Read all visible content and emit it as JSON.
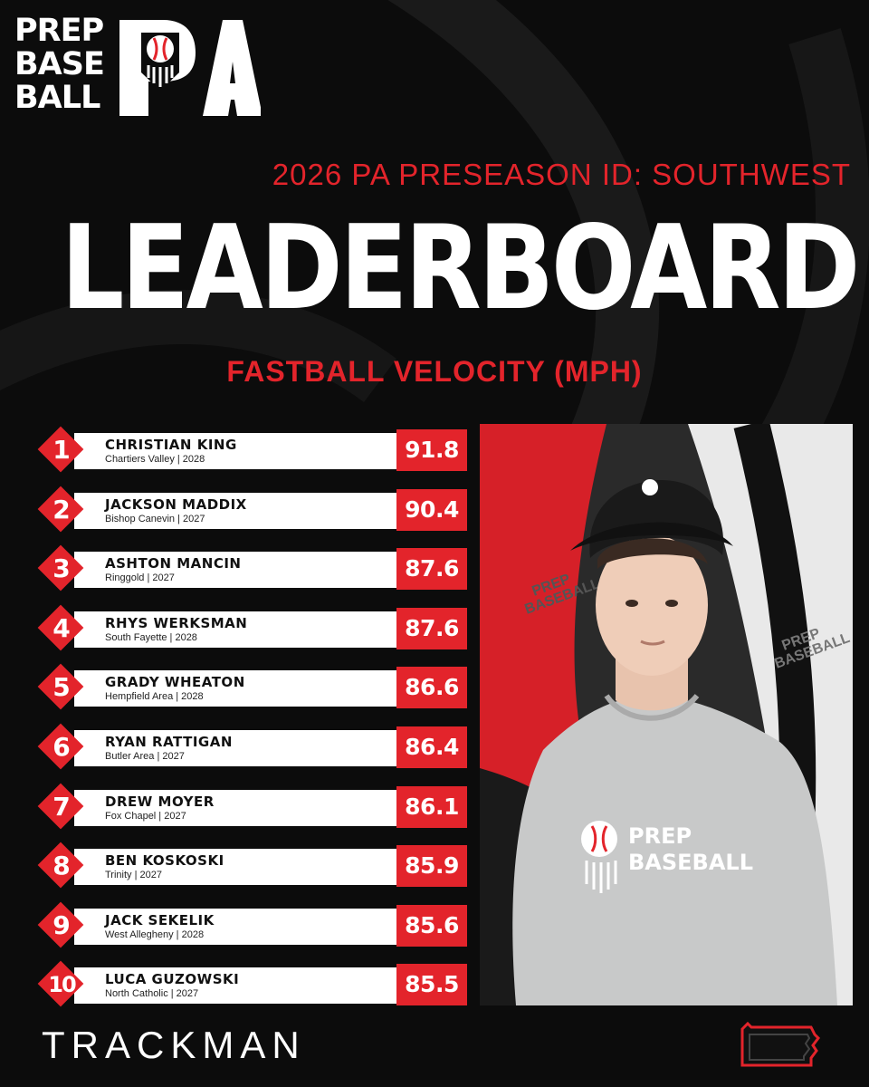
{
  "logo": {
    "line1": "PREP",
    "line2": "BASE",
    "line3": "BALL",
    "mark": "PA"
  },
  "event_title": "2026 PA PRESEASON ID: SOUTHWEST",
  "main_title": "LEADERBOARD",
  "metric_title": "FASTBALL VELOCITY (MPH)",
  "leaderboard": [
    {
      "rank": "1",
      "name": "CHRISTIAN KING",
      "info": "Chartiers Valley | 2028",
      "value": "91.8"
    },
    {
      "rank": "2",
      "name": "JACKSON MADDIX",
      "info": "Bishop Canevin | 2027",
      "value": "90.4"
    },
    {
      "rank": "3",
      "name": "ASHTON MANCIN",
      "info": "Ringgold | 2027",
      "value": "87.6"
    },
    {
      "rank": "4",
      "name": "RHYS WERKSMAN",
      "info": "South Fayette | 2028",
      "value": "87.6"
    },
    {
      "rank": "5",
      "name": "GRADY WHEATON",
      "info": "Hempfield Area | 2028",
      "value": "86.6"
    },
    {
      "rank": "6",
      "name": "RYAN RATTIGAN",
      "info": "Butler Area | 2027",
      "value": "86.4"
    },
    {
      "rank": "7",
      "name": "DREW MOYER",
      "info": "Fox Chapel | 2027",
      "value": "86.1"
    },
    {
      "rank": "8",
      "name": "BEN KOSKOSKI",
      "info": "Trinity | 2027",
      "value": "85.9"
    },
    {
      "rank": "9",
      "name": "JACK SEKELIK",
      "info": "West Allegheny | 2028",
      "value": "85.6"
    },
    {
      "rank": "10",
      "name": "LUCA GUZOWSKI",
      "info": "North Catholic | 2027",
      "value": "85.5"
    }
  ],
  "photo": {
    "shirt_line1": "PREP",
    "shirt_line2": "BASEBALL",
    "backdrop_line1": "PREP",
    "backdrop_line2": "BASEBALL"
  },
  "sponsor": "TRACKMAN",
  "icons": {
    "logo_icon": "baseball-shield-icon",
    "state_icon": "pennsylvania-outline-icon"
  },
  "colors": {
    "accent": "#e3242b",
    "background": "#0c0c0c",
    "text": "#ffffff"
  }
}
